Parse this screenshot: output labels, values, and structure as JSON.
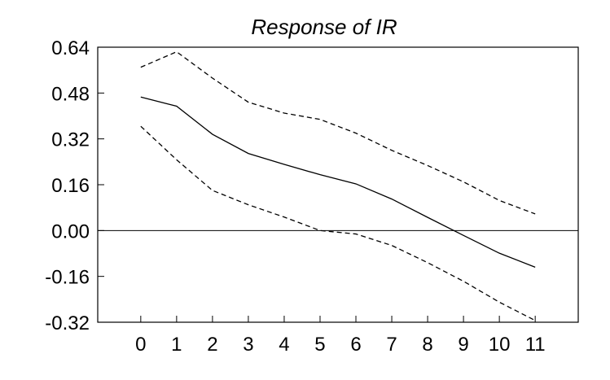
{
  "chart_data": {
    "type": "line",
    "title": "Response of IR",
    "xlabel": "",
    "ylabel": "",
    "x": [
      0,
      1,
      2,
      3,
      4,
      5,
      6,
      7,
      8,
      9,
      10,
      11
    ],
    "x_tick_labels": [
      "0",
      "1",
      "2",
      "3",
      "4",
      "5",
      "6",
      "7",
      "8",
      "9",
      "10",
      "11"
    ],
    "xlim": [
      -1.2,
      12.2
    ],
    "y_ticks": [
      0.64,
      0.48,
      0.32,
      0.16,
      0.0,
      -0.16,
      -0.32
    ],
    "y_tick_labels": [
      "0.64",
      "0.48",
      "0.32",
      "0.16",
      "0.00",
      "-0.16",
      "-0.32"
    ],
    "ylim": [
      -0.32,
      0.64
    ],
    "grid": false,
    "legend": "none",
    "zero_line": true,
    "series": [
      {
        "style": "solid",
        "values": [
          0.466,
          0.434,
          0.336,
          0.269,
          0.231,
          0.195,
          0.163,
          0.11,
          0.046,
          -0.017,
          -0.079,
          -0.128
        ]
      },
      {
        "style": "dashed",
        "values": [
          0.57,
          0.624,
          0.532,
          0.448,
          0.41,
          0.388,
          0.34,
          0.28,
          0.227,
          0.17,
          0.105,
          0.058
        ]
      },
      {
        "style": "dashed",
        "values": [
          0.364,
          0.247,
          0.14,
          0.09,
          0.047,
          0.0,
          -0.012,
          -0.052,
          -0.112,
          -0.177,
          -0.25,
          -0.314
        ]
      }
    ],
    "colors": {
      "line": "#000000",
      "axis": "#000000",
      "background": "#ffffff"
    }
  }
}
